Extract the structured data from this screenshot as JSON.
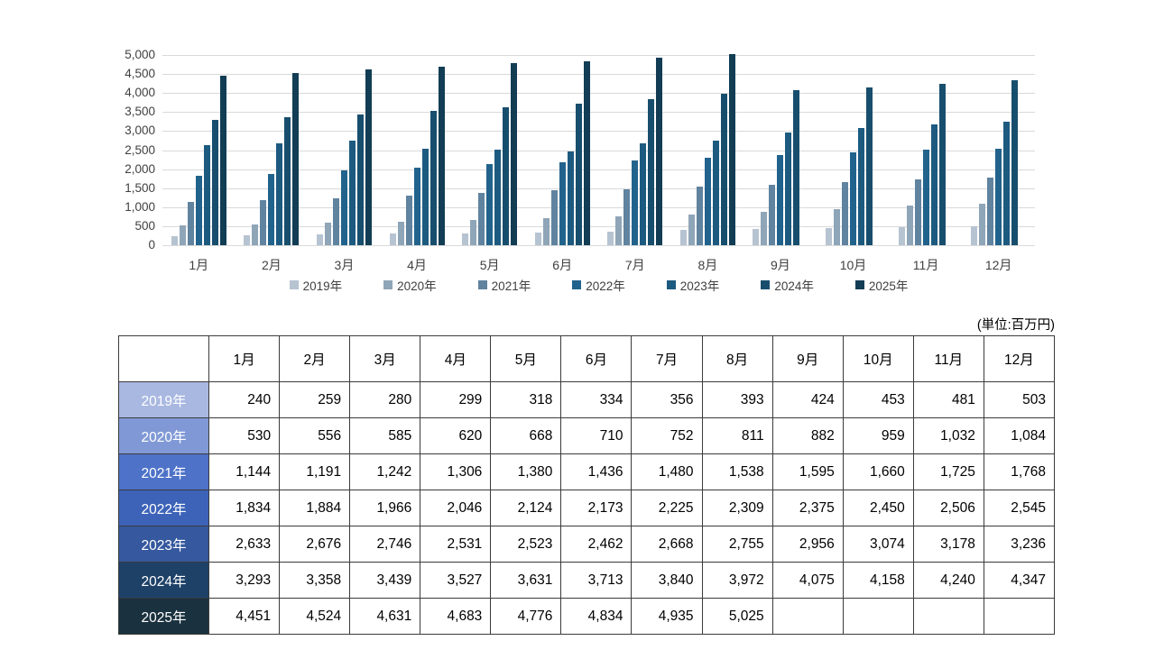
{
  "unit_label": "(単位:百万円)",
  "chart_data": {
    "type": "bar",
    "title": "",
    "xlabel": "",
    "ylabel": "",
    "categories": [
      "1月",
      "2月",
      "3月",
      "4月",
      "5月",
      "6月",
      "7月",
      "8月",
      "9月",
      "10月",
      "11月",
      "12月"
    ],
    "series": [
      {
        "name": "2019年",
        "color": "#b6c3d1",
        "values": [
          240,
          259,
          280,
          299,
          318,
          334,
          356,
          393,
          424,
          453,
          481,
          503
        ]
      },
      {
        "name": "2020年",
        "color": "#8fa5b8",
        "values": [
          530,
          556,
          585,
          620,
          668,
          710,
          752,
          811,
          882,
          959,
          1032,
          1084
        ]
      },
      {
        "name": "2021年",
        "color": "#60839f",
        "values": [
          1144,
          1191,
          1242,
          1306,
          1380,
          1436,
          1480,
          1538,
          1595,
          1660,
          1725,
          1768
        ]
      },
      {
        "name": "2022年",
        "color": "#21638c",
        "values": [
          1834,
          1884,
          1966,
          2046,
          2124,
          2173,
          2225,
          2309,
          2375,
          2450,
          2506,
          2545
        ]
      },
      {
        "name": "2023年",
        "color": "#1d5a80",
        "values": [
          2633,
          2676,
          2746,
          2531,
          2523,
          2462,
          2668,
          2755,
          2956,
          3074,
          3178,
          3236
        ]
      },
      {
        "name": "2024年",
        "color": "#184e6d",
        "values": [
          3293,
          3358,
          3439,
          3527,
          3631,
          3713,
          3840,
          3972,
          4075,
          4158,
          4240,
          4347
        ]
      },
      {
        "name": "2025年",
        "color": "#123d55",
        "values": [
          4451,
          4524,
          4631,
          4683,
          4776,
          4834,
          4935,
          5025,
          null,
          null,
          null,
          null
        ]
      }
    ],
    "ylim": [
      0,
      5000
    ],
    "ytick_step": 500,
    "grid": true,
    "legend_position": "bottom",
    "gridline_color": "#d9d9d9",
    "axis_label_color": "#404040"
  },
  "table": {
    "corner_label": "",
    "col_headers": [
      "1月",
      "2月",
      "3月",
      "4月",
      "5月",
      "6月",
      "7月",
      "8月",
      "9月",
      "10月",
      "11月",
      "12月"
    ],
    "row_label_colors": [
      "#a9b8e1",
      "#8099d6",
      "#4e72c8",
      "#3d63b8",
      "#35589e",
      "#1e4168",
      "#1a323f"
    ],
    "border_color": "#3b3b3b"
  }
}
